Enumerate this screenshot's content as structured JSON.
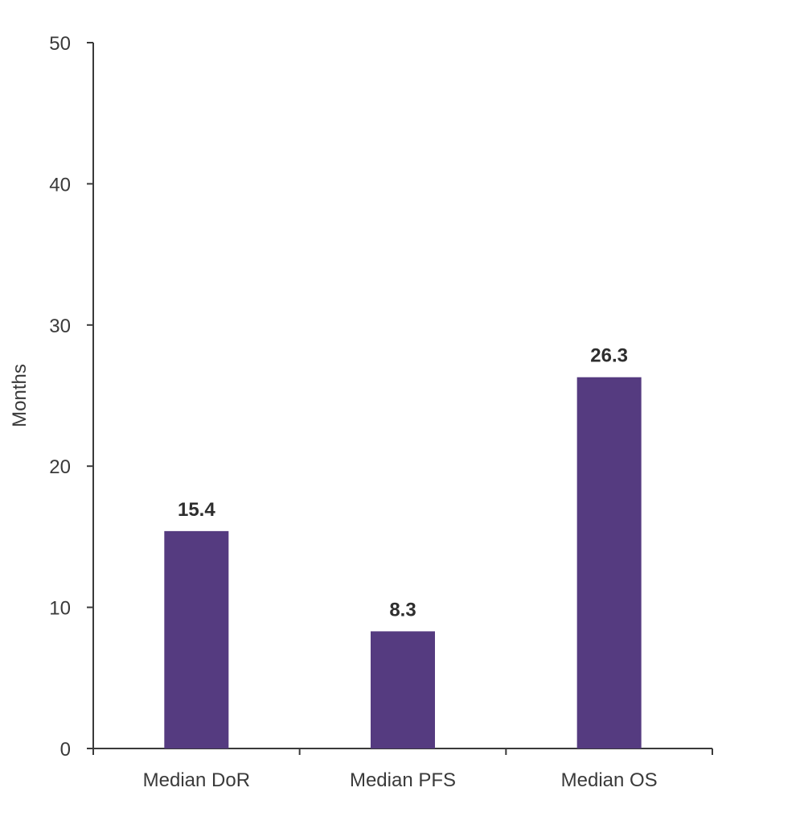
{
  "chart_data": {
    "type": "bar",
    "categories": [
      "Median DoR",
      "Median PFS",
      "Median OS"
    ],
    "values": [
      15.4,
      8.3,
      26.3
    ],
    "data_labels": [
      "15.4",
      "8.3",
      "26.3"
    ],
    "title": "",
    "xlabel": "",
    "ylabel": "Months",
    "ylim": [
      0,
      50
    ],
    "yticks": [
      0,
      10,
      20,
      30,
      40,
      50
    ],
    "ytick_labels": [
      "0",
      "10",
      "20",
      "30",
      "40",
      "50"
    ],
    "grid": false,
    "legend": "none",
    "bar_color": "#553b80",
    "axis_color": "#3a3a3a",
    "label_color": "#2e2e2e"
  }
}
